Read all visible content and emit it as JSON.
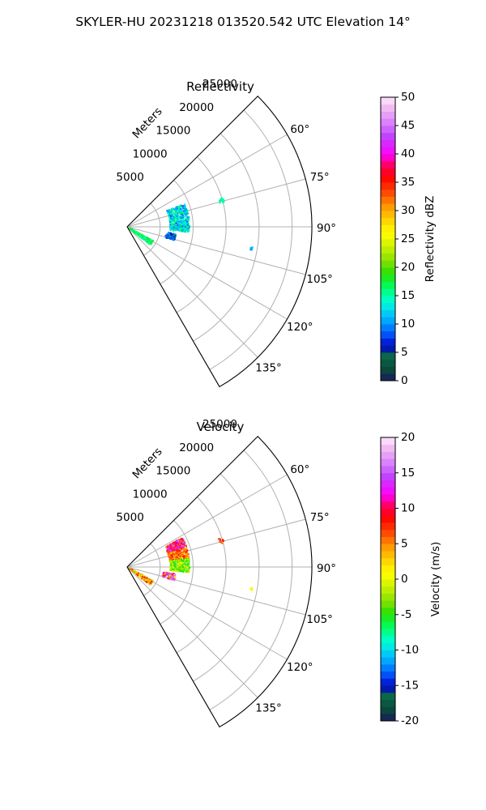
{
  "figure": {
    "title": "SKYLER-HU  20231218  013520.542 UTC Elevation 14°"
  },
  "chart_data": [
    {
      "type": "scatter",
      "subtype": "polar-sector-radar-ppi",
      "title": "Reflectivity",
      "range_label": "Meters",
      "range_ticks": [
        5000,
        10000,
        15000,
        20000,
        25000
      ],
      "rmax": 28000,
      "azimuth_range_deg": [
        45,
        150
      ],
      "azimuth_ticks_deg": [
        60,
        75,
        90,
        105,
        120,
        135
      ],
      "grid": true,
      "colorbar": {
        "label": "Reflectivity dBZ",
        "min": 0,
        "max": 50,
        "ticks": [
          0,
          5,
          10,
          15,
          20,
          25,
          30,
          35,
          40,
          45,
          50
        ]
      },
      "echo_regions": [
        {
          "az_range_deg": [
            68,
            95
          ],
          "range_m": [
            6500,
            9500
          ],
          "value_range": [
            5,
            16
          ],
          "dominant_value": 13
        },
        {
          "az_range_deg": [
            118,
            128
          ],
          "range_m": [
            500,
            4500
          ],
          "value_range": [
            10,
            18
          ],
          "dominant_value": 17
        },
        {
          "az_range_deg": [
            98,
            106
          ],
          "range_m": [
            6000,
            7500
          ],
          "value_range": [
            3,
            12
          ],
          "dominant_value": 8
        },
        {
          "az_range_deg": [
            73,
            76
          ],
          "range_m": [
            14500,
            15200
          ],
          "value_range": [
            14,
            16
          ],
          "dominant_value": 15
        },
        {
          "az_range_deg": [
            99,
            101
          ],
          "range_m": [
            19000,
            19300
          ],
          "value_range": [
            10,
            12
          ],
          "dominant_value": 11
        }
      ]
    },
    {
      "type": "scatter",
      "subtype": "polar-sector-radar-ppi",
      "title": "Velocity",
      "range_label": "Meters",
      "range_ticks": [
        5000,
        10000,
        15000,
        20000,
        25000
      ],
      "rmax": 28000,
      "azimuth_range_deg": [
        45,
        150
      ],
      "azimuth_ticks_deg": [
        60,
        75,
        90,
        105,
        120,
        135
      ],
      "grid": true,
      "colorbar": {
        "label": "Velocity (m/s)",
        "min": -20,
        "max": 20,
        "ticks": [
          -20,
          -15,
          -10,
          -5,
          0,
          5,
          10,
          15,
          20
        ]
      },
      "echo_regions": [
        {
          "az_range_deg": [
            62,
            72
          ],
          "range_m": [
            6500,
            9500
          ],
          "value_range": [
            6,
            18
          ],
          "dominant_value": 10
        },
        {
          "az_range_deg": [
            72,
            82
          ],
          "range_m": [
            6500,
            9500
          ],
          "value_range": [
            2,
            10
          ],
          "dominant_value": 6
        },
        {
          "az_range_deg": [
            82,
            95
          ],
          "range_m": [
            6500,
            9500
          ],
          "value_range": [
            -6,
            2
          ],
          "dominant_value": -3
        },
        {
          "az_range_deg": [
            118,
            128
          ],
          "range_m": [
            500,
            4500
          ],
          "value_range": [
            -2,
            14
          ],
          "dominant_value": 3
        },
        {
          "az_range_deg": [
            98,
            106
          ],
          "range_m": [
            5500,
            7500
          ],
          "value_range": [
            -14,
            16
          ],
          "dominant_value": 14
        },
        {
          "az_range_deg": [
            73,
            76
          ],
          "range_m": [
            14500,
            15200
          ],
          "value_range": [
            5,
            9
          ],
          "dominant_value": 7
        },
        {
          "az_range_deg": [
            99,
            101
          ],
          "range_m": [
            19000,
            19300
          ],
          "value_range": [
            0,
            2
          ],
          "dominant_value": 1
        }
      ]
    }
  ]
}
